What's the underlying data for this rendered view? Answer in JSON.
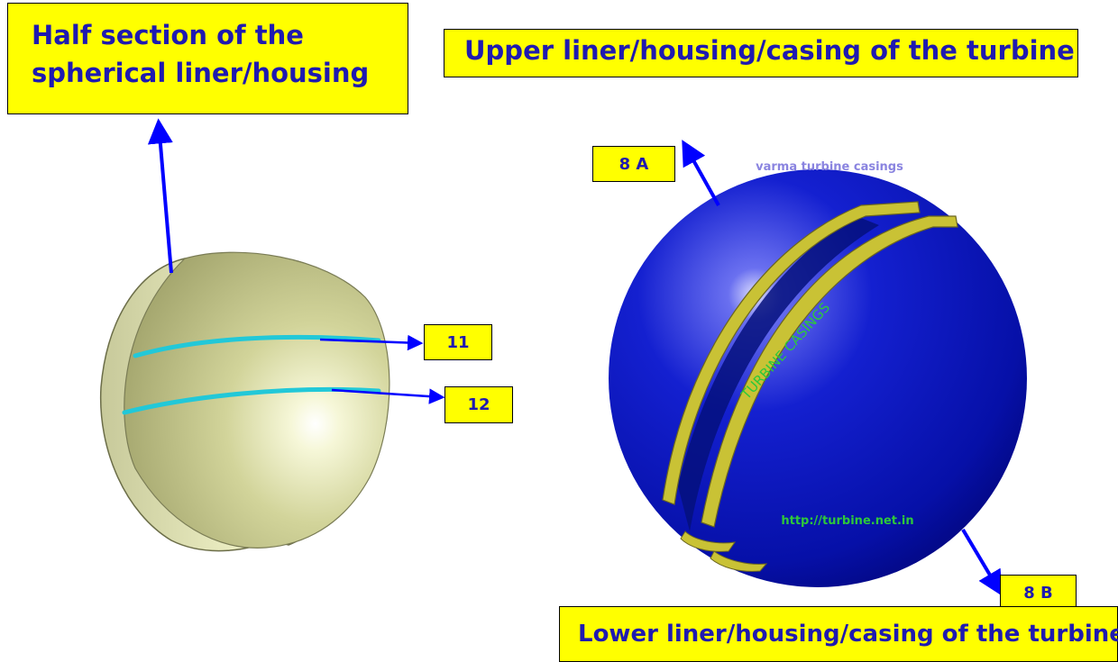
{
  "labels": {
    "half_section": [
      "Half section of the",
      "spherical liner/housing"
    ],
    "upper_casing": "Upper liner/housing/casing of the turbine",
    "lower_casing": "Lower liner/housing/casing of the turbine",
    "part_8a": "8 A",
    "part_8b": "8 B",
    "part_11": "11",
    "part_12": "12"
  },
  "model_text": {
    "header": "varma turbine casings",
    "sphere_title": "TURBINE CASINGS",
    "url": "http://turbine.net.in"
  },
  "colors": {
    "label_fill": "#ffff00",
    "label_text": "#1f1ab0",
    "arrow": "#0000ff",
    "hemisphere": "#e6e8b0",
    "sphere": "#0a14c8",
    "ring": "#c9c235",
    "groove": "#22c8d8"
  }
}
